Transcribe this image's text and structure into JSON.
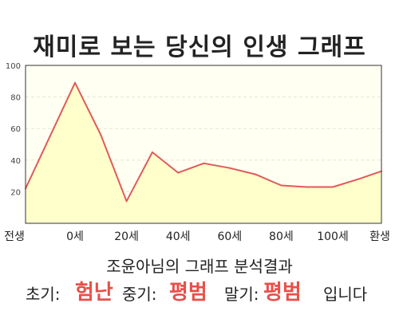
{
  "chart_data": {
    "type": "area",
    "title": "재미로 보는 당신의 인생 그래프",
    "x_tick_labels": [
      "전생",
      "0세",
      "20세",
      "40세",
      "60세",
      "80세",
      "100세",
      "환생"
    ],
    "y_ticks": [
      20,
      40,
      60,
      80,
      100
    ],
    "ylim": [
      0,
      100
    ],
    "grid": true,
    "series": [
      {
        "x": [
          "전생",
          0,
          10,
          20,
          30,
          40,
          50,
          60,
          70,
          80,
          90,
          100,
          110,
          "환생"
        ],
        "y": [
          22,
          89,
          56,
          14,
          45,
          32,
          38,
          35,
          31,
          24,
          23,
          23,
          28,
          33
        ]
      }
    ],
    "colors": {
      "line": "#e05a5a",
      "fill": "#ffffcc",
      "plot_bg": "#fffff0",
      "highlight": "#e8504a"
    }
  },
  "analysis": {
    "title": "조윤아님의 그래프 분석결과",
    "early_label": "초기:",
    "early_value": "험난",
    "mid_label": "중기:",
    "mid_value": "평범",
    "late_label": "말기:",
    "late_value": "평범",
    "suffix": "입니다"
  }
}
